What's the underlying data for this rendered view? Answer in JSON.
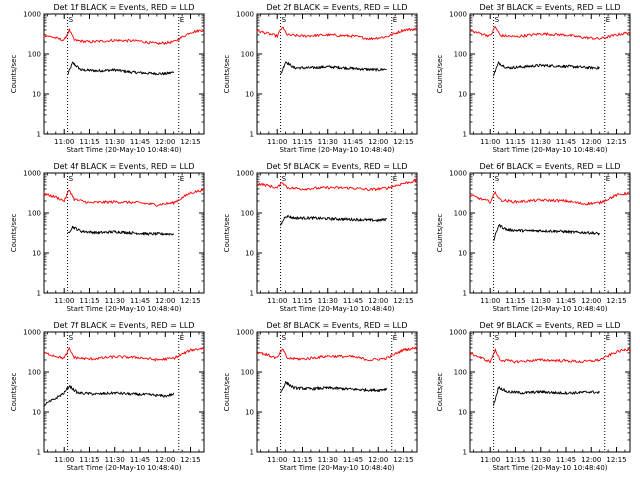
{
  "chart_data": [
    {
      "type": "line",
      "title": "Det 1f BLACK = Events, RED = LLD",
      "xlabel": "Start Time (20-May-10 10:48:40)",
      "ylabel": "Counts/sec",
      "yscale": "log",
      "ylim": [
        1,
        1000
      ],
      "xlim": [
        "10:48",
        "12:23"
      ],
      "x_ticks": [
        "11:00",
        "11:15",
        "11:30",
        "11:45",
        "12:00",
        "12:15"
      ],
      "y_ticks": [
        "1",
        "10",
        "100",
        "1000"
      ],
      "markers": [
        "S",
        "E"
      ],
      "markers_at": [
        "11:02",
        "12:08"
      ],
      "series": [
        {
          "name": "Events",
          "color": "#000000",
          "x_start": "11:02",
          "x_end": "12:05",
          "x": [
            "11:02",
            "11:05",
            "11:10",
            "11:20",
            "11:30",
            "11:40",
            "11:50",
            "12:00",
            "12:05"
          ],
          "values": [
            30,
            60,
            40,
            38,
            40,
            35,
            33,
            32,
            35
          ]
        },
        {
          "name": "LLD",
          "color": "#ff0000",
          "x_start": "10:48",
          "x_end": "12:23",
          "x": [
            "10:48",
            "10:55",
            "11:00",
            "11:03",
            "11:06",
            "11:15",
            "11:30",
            "11:45",
            "11:55",
            "12:05",
            "12:15",
            "12:23"
          ],
          "values": [
            300,
            250,
            220,
            400,
            220,
            200,
            220,
            210,
            180,
            200,
            350,
            400
          ]
        }
      ]
    },
    {
      "type": "line",
      "title": "Det 2f BLACK = Events, RED = LLD",
      "xlabel": "Start Time (20-May-10 10:48:40)",
      "ylabel": "Counts/sec",
      "yscale": "log",
      "ylim": [
        1,
        1000
      ],
      "xlim": [
        "10:48",
        "12:23"
      ],
      "x_ticks": [
        "11:00",
        "11:15",
        "11:30",
        "11:45",
        "12:00",
        "12:15"
      ],
      "y_ticks": [
        "1",
        "10",
        "100",
        "1000"
      ],
      "markers": [
        "S",
        "E"
      ],
      "markers_at": [
        "11:02",
        "12:08"
      ],
      "series": [
        {
          "name": "Events",
          "color": "#000000",
          "x_start": "11:02",
          "x_end": "12:05",
          "x": [
            "11:02",
            "11:05",
            "11:10",
            "11:20",
            "11:30",
            "11:40",
            "11:50",
            "12:00",
            "12:05"
          ],
          "values": [
            30,
            65,
            45,
            45,
            48,
            45,
            42,
            40,
            42
          ]
        },
        {
          "name": "LLD",
          "color": "#ff0000",
          "x_start": "10:48",
          "x_end": "12:23",
          "x": [
            "10:48",
            "10:55",
            "11:00",
            "11:03",
            "11:06",
            "11:15",
            "11:30",
            "11:45",
            "11:55",
            "12:05",
            "12:15",
            "12:23"
          ],
          "values": [
            380,
            320,
            280,
            470,
            300,
            280,
            300,
            280,
            240,
            270,
            400,
            420
          ]
        }
      ]
    },
    {
      "type": "line",
      "title": "Det 3f BLACK = Events, RED = LLD",
      "xlabel": "Start Time (20-May-10 10:48:40)",
      "ylabel": "Counts/sec",
      "yscale": "log",
      "ylim": [
        1,
        1000
      ],
      "xlim": [
        "10:48",
        "12:23"
      ],
      "x_ticks": [
        "11:00",
        "11:15",
        "11:30",
        "11:45",
        "12:00",
        "12:15"
      ],
      "y_ticks": [
        "1",
        "10",
        "100",
        "1000"
      ],
      "markers": [
        "S",
        "E"
      ],
      "markers_at": [
        "11:02",
        "12:08"
      ],
      "series": [
        {
          "name": "Events",
          "color": "#000000",
          "x_start": "11:02",
          "x_end": "12:05",
          "x": [
            "11:02",
            "11:05",
            "11:10",
            "11:20",
            "11:30",
            "11:40",
            "11:50",
            "12:00",
            "12:05"
          ],
          "values": [
            30,
            60,
            45,
            48,
            52,
            50,
            48,
            45,
            45
          ]
        },
        {
          "name": "LLD",
          "color": "#ff0000",
          "x_start": "10:48",
          "x_end": "12:23",
          "x": [
            "10:48",
            "10:55",
            "11:00",
            "11:03",
            "11:06",
            "11:15",
            "11:30",
            "11:45",
            "11:55",
            "12:05",
            "12:15",
            "12:23"
          ],
          "values": [
            380,
            320,
            280,
            480,
            290,
            270,
            320,
            300,
            260,
            240,
            300,
            350
          ]
        }
      ]
    },
    {
      "type": "line",
      "title": "Det 4f BLACK = Events, RED = LLD",
      "xlabel": "Start Time (20-May-10 10:48:40)",
      "ylabel": "Counts/sec",
      "yscale": "log",
      "ylim": [
        1,
        1000
      ],
      "xlim": [
        "10:48",
        "12:23"
      ],
      "x_ticks": [
        "11:00",
        "11:15",
        "11:30",
        "11:45",
        "12:00",
        "12:15"
      ],
      "y_ticks": [
        "1",
        "10",
        "100",
        "1000"
      ],
      "markers": [
        "S",
        "E"
      ],
      "markers_at": [
        "11:02",
        "12:08"
      ],
      "series": [
        {
          "name": "Events",
          "color": "#000000",
          "x_start": "11:02",
          "x_end": "12:05",
          "x": [
            "11:02",
            "11:05",
            "11:10",
            "11:20",
            "11:30",
            "11:40",
            "11:50",
            "12:00",
            "12:05"
          ],
          "values": [
            30,
            45,
            35,
            32,
            34,
            32,
            30,
            30,
            30
          ]
        },
        {
          "name": "LLD",
          "color": "#ff0000",
          "x_start": "10:48",
          "x_end": "12:23",
          "x": [
            "10:48",
            "10:55",
            "11:00",
            "11:03",
            "11:06",
            "11:15",
            "11:30",
            "11:45",
            "11:55",
            "12:05",
            "12:15",
            "12:23"
          ],
          "values": [
            300,
            250,
            200,
            380,
            220,
            180,
            190,
            180,
            160,
            180,
            320,
            380
          ]
        }
      ]
    },
    {
      "type": "line",
      "title": "Det 5f BLACK = Events, RED = LLD",
      "xlabel": "Start Time (20-May-10 10:48:40)",
      "ylabel": "Counts/sec",
      "yscale": "log",
      "ylim": [
        1,
        1000
      ],
      "xlim": [
        "10:48",
        "12:23"
      ],
      "x_ticks": [
        "11:00",
        "11:15",
        "11:30",
        "11:45",
        "12:00",
        "12:15"
      ],
      "y_ticks": [
        "1",
        "10",
        "100",
        "1000"
      ],
      "markers": [
        "S",
        "E"
      ],
      "markers_at": [
        "11:02",
        "12:08"
      ],
      "series": [
        {
          "name": "Events",
          "color": "#000000",
          "x_start": "11:02",
          "x_end": "12:05",
          "x": [
            "11:02",
            "11:05",
            "11:10",
            "11:20",
            "11:30",
            "11:40",
            "11:50",
            "12:00",
            "12:05"
          ],
          "values": [
            50,
            85,
            75,
            75,
            72,
            70,
            68,
            65,
            70
          ]
        },
        {
          "name": "LLD",
          "color": "#ff0000",
          "x_start": "10:48",
          "x_end": "12:23",
          "x": [
            "10:48",
            "10:55",
            "11:00",
            "11:03",
            "11:06",
            "11:15",
            "11:30",
            "11:45",
            "11:55",
            "12:05",
            "12:15",
            "12:23"
          ],
          "values": [
            550,
            480,
            420,
            600,
            430,
            400,
            430,
            420,
            380,
            420,
            550,
            650
          ]
        }
      ]
    },
    {
      "type": "line",
      "title": "Det 6f BLACK = Events, RED = LLD",
      "xlabel": "Start Time (20-May-10 10:48:40)",
      "ylabel": "Counts/sec",
      "yscale": "log",
      "ylim": [
        1,
        1000
      ],
      "xlim": [
        "10:48",
        "12:23"
      ],
      "x_ticks": [
        "11:00",
        "11:15",
        "11:30",
        "11:45",
        "12:00",
        "12:15"
      ],
      "y_ticks": [
        "1",
        "10",
        "100",
        "1000"
      ],
      "markers": [
        "S",
        "E"
      ],
      "markers_at": [
        "11:02",
        "12:08"
      ],
      "series": [
        {
          "name": "Events",
          "color": "#000000",
          "x_start": "11:02",
          "x_end": "12:05",
          "x": [
            "11:02",
            "11:05",
            "11:10",
            "11:20",
            "11:30",
            "11:40",
            "11:50",
            "12:00",
            "12:05"
          ],
          "values": [
            20,
            50,
            38,
            36,
            36,
            35,
            33,
            32,
            30
          ]
        },
        {
          "name": "LLD",
          "color": "#ff0000",
          "x_start": "10:48",
          "x_end": "12:23",
          "x": [
            "10:48",
            "10:55",
            "11:00",
            "11:03",
            "11:06",
            "11:15",
            "11:30",
            "11:45",
            "11:55",
            "12:05",
            "12:15",
            "12:23"
          ],
          "values": [
            280,
            220,
            190,
            330,
            210,
            190,
            210,
            200,
            170,
            180,
            280,
            320
          ]
        }
      ]
    },
    {
      "type": "line",
      "title": "Det 7f BLACK = Events, RED = LLD",
      "xlabel": "Start Time (20-May-10 10:48:40)",
      "ylabel": "Counts/sec",
      "yscale": "log",
      "ylim": [
        1,
        1000
      ],
      "xlim": [
        "10:48",
        "12:23"
      ],
      "x_ticks": [
        "11:00",
        "11:15",
        "11:30",
        "11:45",
        "12:00",
        "12:15"
      ],
      "y_ticks": [
        "1",
        "10",
        "100",
        "1000"
      ],
      "markers": [
        "S",
        "E"
      ],
      "markers_at": [
        "11:02",
        "12:08"
      ],
      "series": [
        {
          "name": "Events",
          "color": "#000000",
          "x_start": "10:48",
          "x_end": "12:05",
          "x": [
            "10:48",
            "10:55",
            "11:00",
            "11:03",
            "11:08",
            "11:20",
            "11:30",
            "11:40",
            "11:50",
            "12:00",
            "12:05"
          ],
          "values": [
            15,
            22,
            30,
            45,
            30,
            28,
            30,
            28,
            27,
            25,
            28
          ]
        },
        {
          "name": "LLD",
          "color": "#ff0000",
          "x_start": "10:48",
          "x_end": "12:23",
          "x": [
            "10:48",
            "10:55",
            "11:00",
            "11:03",
            "11:06",
            "11:15",
            "11:30",
            "11:45",
            "11:55",
            "12:05",
            "12:15",
            "12:23"
          ],
          "values": [
            300,
            250,
            220,
            380,
            230,
            210,
            240,
            230,
            200,
            220,
            350,
            400
          ]
        }
      ]
    },
    {
      "type": "line",
      "title": "Det 8f BLACK = Events, RED = LLD",
      "xlabel": "Start Time (20-May-10 10:48:40)",
      "ylabel": "Counts/sec",
      "yscale": "log",
      "ylim": [
        1,
        1000
      ],
      "xlim": [
        "10:48",
        "12:23"
      ],
      "x_ticks": [
        "11:00",
        "11:15",
        "11:30",
        "11:45",
        "12:00",
        "12:15"
      ],
      "y_ticks": [
        "1",
        "10",
        "100",
        "1000"
      ],
      "markers": [
        "S",
        "E"
      ],
      "markers_at": [
        "11:02",
        "12:08"
      ],
      "series": [
        {
          "name": "Events",
          "color": "#000000",
          "x_start": "11:02",
          "x_end": "12:05",
          "x": [
            "11:02",
            "11:05",
            "11:10",
            "11:20",
            "11:30",
            "11:40",
            "11:50",
            "12:00",
            "12:05"
          ],
          "values": [
            30,
            55,
            40,
            38,
            40,
            38,
            36,
            35,
            38
          ]
        },
        {
          "name": "LLD",
          "color": "#ff0000",
          "x_start": "10:48",
          "x_end": "12:23",
          "x": [
            "10:48",
            "10:55",
            "11:00",
            "11:03",
            "11:06",
            "11:15",
            "11:30",
            "11:45",
            "11:55",
            "12:05",
            "12:15",
            "12:23"
          ],
          "values": [
            320,
            260,
            220,
            380,
            220,
            210,
            250,
            240,
            200,
            220,
            360,
            400
          ]
        }
      ]
    },
    {
      "type": "line",
      "title": "Det 9f BLACK = Events, RED = LLD",
      "xlabel": "Start Time (20-May-10 10:48:40)",
      "ylabel": "Counts/sec",
      "yscale": "log",
      "ylim": [
        1,
        1000
      ],
      "xlim": [
        "10:48",
        "12:23"
      ],
      "x_ticks": [
        "11:00",
        "11:15",
        "11:30",
        "11:45",
        "12:00",
        "12:15"
      ],
      "y_ticks": [
        "1",
        "10",
        "100",
        "1000"
      ],
      "markers": [
        "S",
        "E"
      ],
      "markers_at": [
        "11:02",
        "12:08"
      ],
      "series": [
        {
          "name": "Events",
          "color": "#000000",
          "x_start": "11:02",
          "x_end": "12:05",
          "x": [
            "11:02",
            "11:05",
            "11:10",
            "11:20",
            "11:30",
            "11:40",
            "11:50",
            "12:00",
            "12:05"
          ],
          "values": [
            15,
            42,
            32,
            30,
            32,
            30,
            30,
            32,
            30
          ]
        },
        {
          "name": "LLD",
          "color": "#ff0000",
          "x_start": "10:48",
          "x_end": "12:23",
          "x": [
            "10:48",
            "10:55",
            "11:00",
            "11:03",
            "11:06",
            "11:15",
            "11:30",
            "11:45",
            "11:55",
            "12:05",
            "12:15",
            "12:23"
          ],
          "values": [
            300,
            220,
            180,
            350,
            200,
            180,
            200,
            190,
            180,
            200,
            320,
            380
          ]
        }
      ]
    }
  ]
}
